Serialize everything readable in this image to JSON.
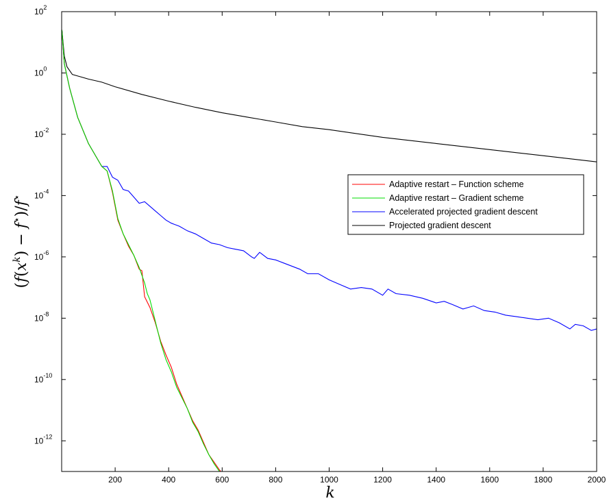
{
  "chart_data": {
    "type": "line",
    "title": "",
    "xlabel": "k",
    "ylabel": "(f(x^k) − f^⋆)/f^⋆",
    "ylabel_parts": {
      "open": "(",
      "f1": "f",
      "x": "x",
      "k": "k",
      "mid": ") − ",
      "f2": "f",
      "star1": "⋆",
      "close": ")/",
      "f3": "f",
      "star2": "⋆"
    },
    "xlim": [
      0,
      2000
    ],
    "ylim_log10": [
      -13,
      2
    ],
    "yscale": "log",
    "grid": false,
    "legend_position": "right",
    "x_ticks": [
      200,
      400,
      600,
      800,
      1000,
      1200,
      1400,
      1600,
      1800,
      2000
    ],
    "x_tick_labels": [
      "200",
      "400",
      "600",
      "800",
      "1000",
      "1200",
      "1400",
      "1600",
      "1800",
      "2000"
    ],
    "y_tick_exponents": [
      2,
      0,
      -2,
      -4,
      -6,
      -8,
      -10,
      -12
    ],
    "y_tick_base": "10",
    "y_tick_exp_labels": [
      "2",
      "0",
      "-2",
      "-4",
      "-6",
      "-8",
      "-10",
      "-12"
    ],
    "series": [
      {
        "name": "Adaptive restart –  Function scheme",
        "color": "#ff0000",
        "x": [
          1,
          10,
          30,
          60,
          100,
          130,
          150,
          170,
          190,
          210,
          230,
          250,
          270,
          290,
          300,
          310,
          330,
          350,
          370,
          390,
          410,
          430,
          450,
          470,
          490,
          510,
          530,
          550,
          570,
          590,
          600,
          605
        ],
        "log10_y": [
          1.4,
          0.3,
          -0.5,
          -1.45,
          -2.3,
          -2.75,
          -3.05,
          -3.2,
          -3.9,
          -4.8,
          -5.25,
          -5.65,
          -5.95,
          -6.4,
          -6.45,
          -7.3,
          -7.65,
          -8.15,
          -8.75,
          -9.2,
          -9.6,
          -10.15,
          -10.55,
          -10.95,
          -11.35,
          -11.65,
          -12.05,
          -12.45,
          -12.7,
          -12.95,
          -13.05,
          -13.0
        ]
      },
      {
        "name": "Adaptive restart – Gradient scheme",
        "color": "#00dd00",
        "x": [
          1,
          10,
          30,
          60,
          100,
          130,
          150,
          170,
          190,
          210,
          230,
          250,
          270,
          290,
          310,
          320,
          330,
          350,
          370,
          390,
          410,
          430,
          450,
          470,
          490,
          510,
          530,
          550,
          570,
          590,
          595
        ],
        "log10_y": [
          1.4,
          0.3,
          -0.5,
          -1.45,
          -2.3,
          -2.75,
          -3.05,
          -3.2,
          -3.85,
          -4.75,
          -5.25,
          -5.6,
          -5.95,
          -6.35,
          -6.85,
          -7.2,
          -7.4,
          -8.1,
          -8.8,
          -9.35,
          -9.75,
          -10.25,
          -10.6,
          -10.95,
          -11.4,
          -11.7,
          -12.1,
          -12.45,
          -12.75,
          -13.0,
          -13.05
        ]
      },
      {
        "name": "Accelerated projected gradient descent",
        "color": "#0000ff",
        "x": [
          1,
          10,
          30,
          60,
          100,
          130,
          150,
          170,
          190,
          210,
          230,
          250,
          270,
          290,
          310,
          330,
          350,
          370,
          390,
          410,
          440,
          470,
          500,
          530,
          560,
          590,
          620,
          650,
          680,
          710,
          720,
          740,
          770,
          800,
          830,
          860,
          890,
          920,
          960,
          1000,
          1040,
          1080,
          1120,
          1160,
          1200,
          1220,
          1250,
          1300,
          1350,
          1400,
          1430,
          1460,
          1500,
          1540,
          1580,
          1620,
          1660,
          1700,
          1740,
          1780,
          1820,
          1860,
          1900,
          1920,
          1950,
          1980,
          2000
        ],
        "log10_y": [
          1.4,
          0.3,
          -0.5,
          -1.45,
          -2.3,
          -2.75,
          -3.05,
          -3.05,
          -3.4,
          -3.5,
          -3.8,
          -3.85,
          -4.05,
          -4.25,
          -4.2,
          -4.35,
          -4.5,
          -4.65,
          -4.8,
          -4.9,
          -5.0,
          -5.15,
          -5.25,
          -5.4,
          -5.55,
          -5.6,
          -5.7,
          -5.75,
          -5.8,
          -6.0,
          -6.05,
          -5.85,
          -6.05,
          -6.1,
          -6.2,
          -6.3,
          -6.4,
          -6.55,
          -6.55,
          -6.75,
          -6.9,
          -7.05,
          -7.0,
          -7.05,
          -7.25,
          -7.05,
          -7.2,
          -7.25,
          -7.35,
          -7.5,
          -7.45,
          -7.55,
          -7.7,
          -7.6,
          -7.75,
          -7.8,
          -7.9,
          -7.95,
          -8.0,
          -8.05,
          -8.0,
          -8.15,
          -8.35,
          -8.2,
          -8.25,
          -8.4,
          -8.35
        ]
      },
      {
        "name": "Projected gradient descent",
        "color": "#000000",
        "x": [
          1,
          10,
          20,
          40,
          60,
          100,
          150,
          200,
          300,
          400,
          500,
          600,
          700,
          800,
          900,
          1000,
          1200,
          1400,
          1600,
          1800,
          2000
        ],
        "log10_y": [
          1.4,
          0.55,
          0.2,
          -0.05,
          -0.1,
          -0.2,
          -0.3,
          -0.45,
          -0.7,
          -0.92,
          -1.12,
          -1.3,
          -1.45,
          -1.6,
          -1.75,
          -1.85,
          -2.1,
          -2.3,
          -2.5,
          -2.7,
          -2.9
        ]
      }
    ]
  }
}
